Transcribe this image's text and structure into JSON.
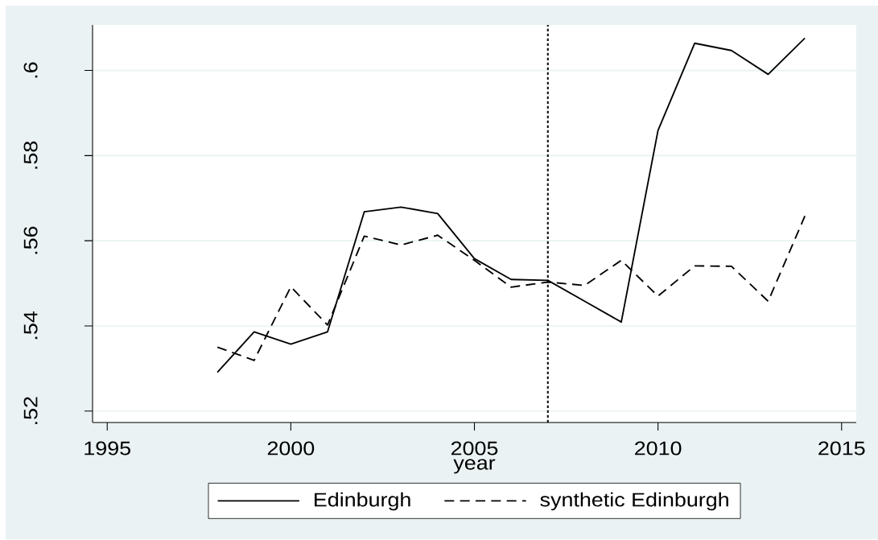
{
  "chart_data": {
    "type": "line",
    "xlabel": "year",
    "x": [
      1998,
      1999,
      2000,
      2001,
      2002,
      2003,
      2004,
      2005,
      2006,
      2007,
      2008,
      2009,
      2010,
      2011,
      2012,
      2013,
      2014
    ],
    "series": [
      {
        "name": "Edinburgh",
        "color": "#000000",
        "line_style": "solid",
        "values": [
          0.5291,
          0.5386,
          0.5357,
          0.5386,
          0.5668,
          0.5679,
          0.5664,
          0.5558,
          0.5509,
          0.5507,
          0.5458,
          0.5409,
          0.5859,
          0.6064,
          0.6047,
          0.5991,
          0.6076
        ]
      },
      {
        "name": "synthetic Edinburgh",
        "color": "#000000",
        "line_style": "dashed",
        "values": [
          0.535,
          0.5319,
          0.5492,
          0.5402,
          0.5611,
          0.559,
          0.5613,
          0.5554,
          0.5491,
          0.5503,
          0.5495,
          0.5554,
          0.547,
          0.5541,
          0.554,
          0.5458,
          0.5658
        ]
      }
    ],
    "xlim": [
      1994.6,
      2015.4
    ],
    "ylim": [
      0.5173,
      0.6107
    ],
    "xticks": [
      1995,
      2000,
      2005,
      2010,
      2015
    ],
    "yticks": [
      {
        "value": 0.52,
        "label": ".52"
      },
      {
        "value": 0.54,
        "label": ".54"
      },
      {
        "value": 0.56,
        "label": ".56"
      },
      {
        "value": 0.58,
        "label": ".58"
      },
      {
        "value": 0.6,
        "label": ".6"
      }
    ],
    "grid": "y",
    "legend": "bottom",
    "ref_lines": [
      {
        "axis": "x",
        "value": 2007,
        "color": "#000000",
        "line_style": "dotted"
      }
    ]
  }
}
